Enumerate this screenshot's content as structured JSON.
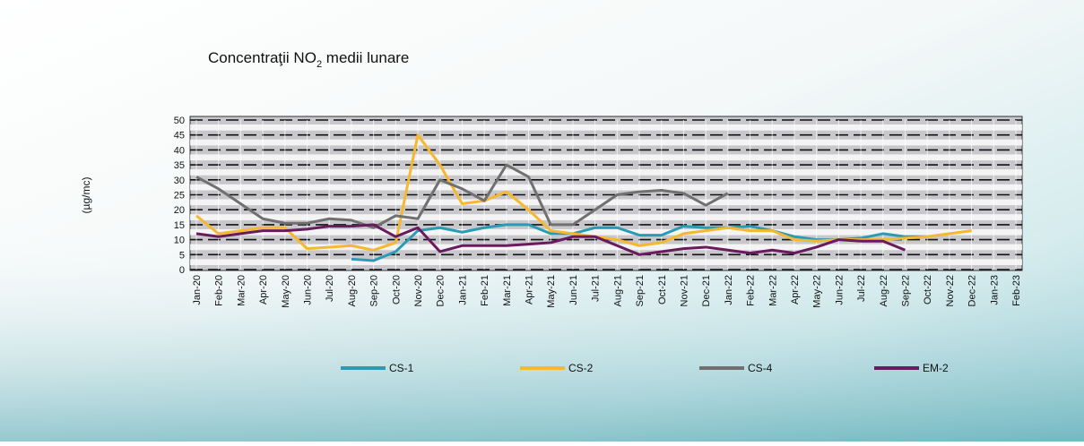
{
  "chart_data": {
    "type": "line",
    "title": [
      "Concentraţii NO",
      "2",
      " medii lunare"
    ],
    "y_label": "(µg/mc)",
    "categories": [
      "Jan-20",
      "Feb-20",
      "Mar-20",
      "Apr-20",
      "May-20",
      "Jun-20",
      "Jul-20",
      "Aug-20",
      "Sep-20",
      "Oct-20",
      "Nov-20",
      "Dec-20",
      "Jan-21",
      "Feb-21",
      "Mar-21",
      "Apr-21",
      "May-21",
      "Jun-21",
      "Jul-21",
      "Aug-21",
      "Sep-21",
      "Oct-21",
      "Nov-21",
      "Dec-21",
      "Jan-22",
      "Feb-22",
      "Mar-22",
      "Apr-22",
      "May-22",
      "Jun-22",
      "Jul-22",
      "Aug-22",
      "Sep-22",
      "Oct-22",
      "Nov-22",
      "Dec-22",
      "Jan-23",
      "Feb-23"
    ],
    "series": [
      {
        "name": "CS-1",
        "color": "#2a9bb5",
        "values": [
          null,
          null,
          null,
          null,
          null,
          null,
          null,
          3.5,
          3,
          6,
          13,
          14,
          12.5,
          14,
          15,
          15,
          12,
          12,
          14,
          14,
          11.5,
          11.5,
          14.5,
          14,
          14,
          14.5,
          13,
          11,
          10,
          10,
          10.5,
          12,
          11,
          11,
          null,
          null,
          null,
          null
        ]
      },
      {
        "name": "CS-2",
        "color": "#f5b82e",
        "values": [
          18,
          12,
          13,
          14,
          14,
          7,
          7.5,
          8,
          6.5,
          9,
          45,
          35,
          22,
          23,
          26,
          20,
          13,
          12,
          11,
          10,
          8,
          9,
          12,
          13,
          14,
          13,
          13,
          10,
          9.5,
          10,
          10,
          10,
          10.5,
          11,
          12,
          13,
          null,
          null
        ]
      },
      {
        "name": "CS-4",
        "color": "#707070",
        "values": [
          31,
          27,
          22,
          17,
          15.5,
          15.5,
          17,
          16.5,
          14,
          18,
          17,
          30,
          27,
          23,
          35,
          31,
          15,
          15,
          20,
          25,
          26,
          26.5,
          25.5,
          21.5,
          25.5,
          null,
          null,
          null,
          null,
          null,
          null,
          null,
          null,
          null,
          null,
          null,
          null,
          null
        ]
      },
      {
        "name": "EM-2",
        "color": "#6a1a5e",
        "values": [
          12,
          11,
          12,
          13,
          13,
          13.5,
          14.5,
          14.5,
          15,
          11,
          14,
          6,
          8,
          8,
          8,
          8.5,
          9,
          11,
          11,
          8,
          5,
          6,
          7,
          7.5,
          6.5,
          5.5,
          6.5,
          5.5,
          7.5,
          10,
          9.5,
          9.5,
          6.5,
          null,
          null,
          null,
          null,
          null
        ]
      }
    ],
    "ylim": [
      0,
      50
    ],
    "yticks": [
      0,
      5,
      10,
      15,
      20,
      25,
      30,
      35,
      40,
      45,
      50
    ],
    "grid": true,
    "legend": "bottom"
  }
}
